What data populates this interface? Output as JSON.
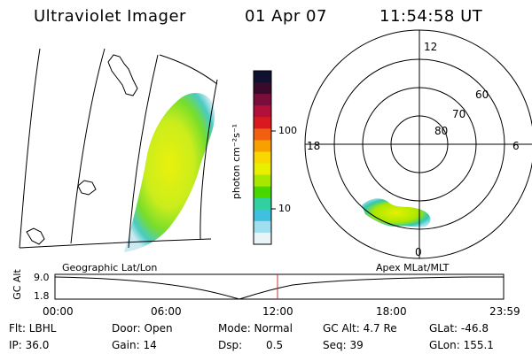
{
  "header": {
    "title": "Ultraviolet Imager",
    "date": "01 Apr 07",
    "time": "11:54:58 UT"
  },
  "geo_panel": {
    "caption": "Geographic Lat/Lon"
  },
  "apex_panel": {
    "caption": "Apex MLat/MLT",
    "mlt_labels": {
      "top": "12",
      "left": "18",
      "right": "6",
      "bottom": "0"
    },
    "lat_labels": [
      "60",
      "70",
      "80"
    ]
  },
  "colorbar": {
    "unit_label": "photon cm⁻²s⁻¹",
    "tick_labels": [
      "100",
      "10"
    ],
    "colors": [
      "#101030",
      "#3a0a2a",
      "#7a0d3a",
      "#b0103a",
      "#d81a20",
      "#f06010",
      "#f8a000",
      "#f8d800",
      "#e8f000",
      "#a8e800",
      "#48d800",
      "#30d0a0",
      "#40c0e0",
      "#a0dff0",
      "#e8f4f8"
    ]
  },
  "altitude_plot": {
    "ylabel": "GC Alt",
    "y_ticks": [
      "9.0",
      "1.8"
    ],
    "x_ticks": [
      "00:00",
      "06:00",
      "12:00",
      "18:00",
      "23:59"
    ],
    "marker_color": "#c03030"
  },
  "info": {
    "flt": "Flt: LBHL",
    "door": "Door: Open",
    "mode": "Mode: Normal",
    "gc_alt": "GC Alt: 4.7 Re",
    "glat": "GLat: -46.8",
    "ip": "IP: 36.0",
    "gain": "Gain: 14",
    "dsp_label": "Dsp:",
    "dsp_value": "0.5",
    "seq": "Seq: 39",
    "glon": "GLon: 155.1"
  }
}
